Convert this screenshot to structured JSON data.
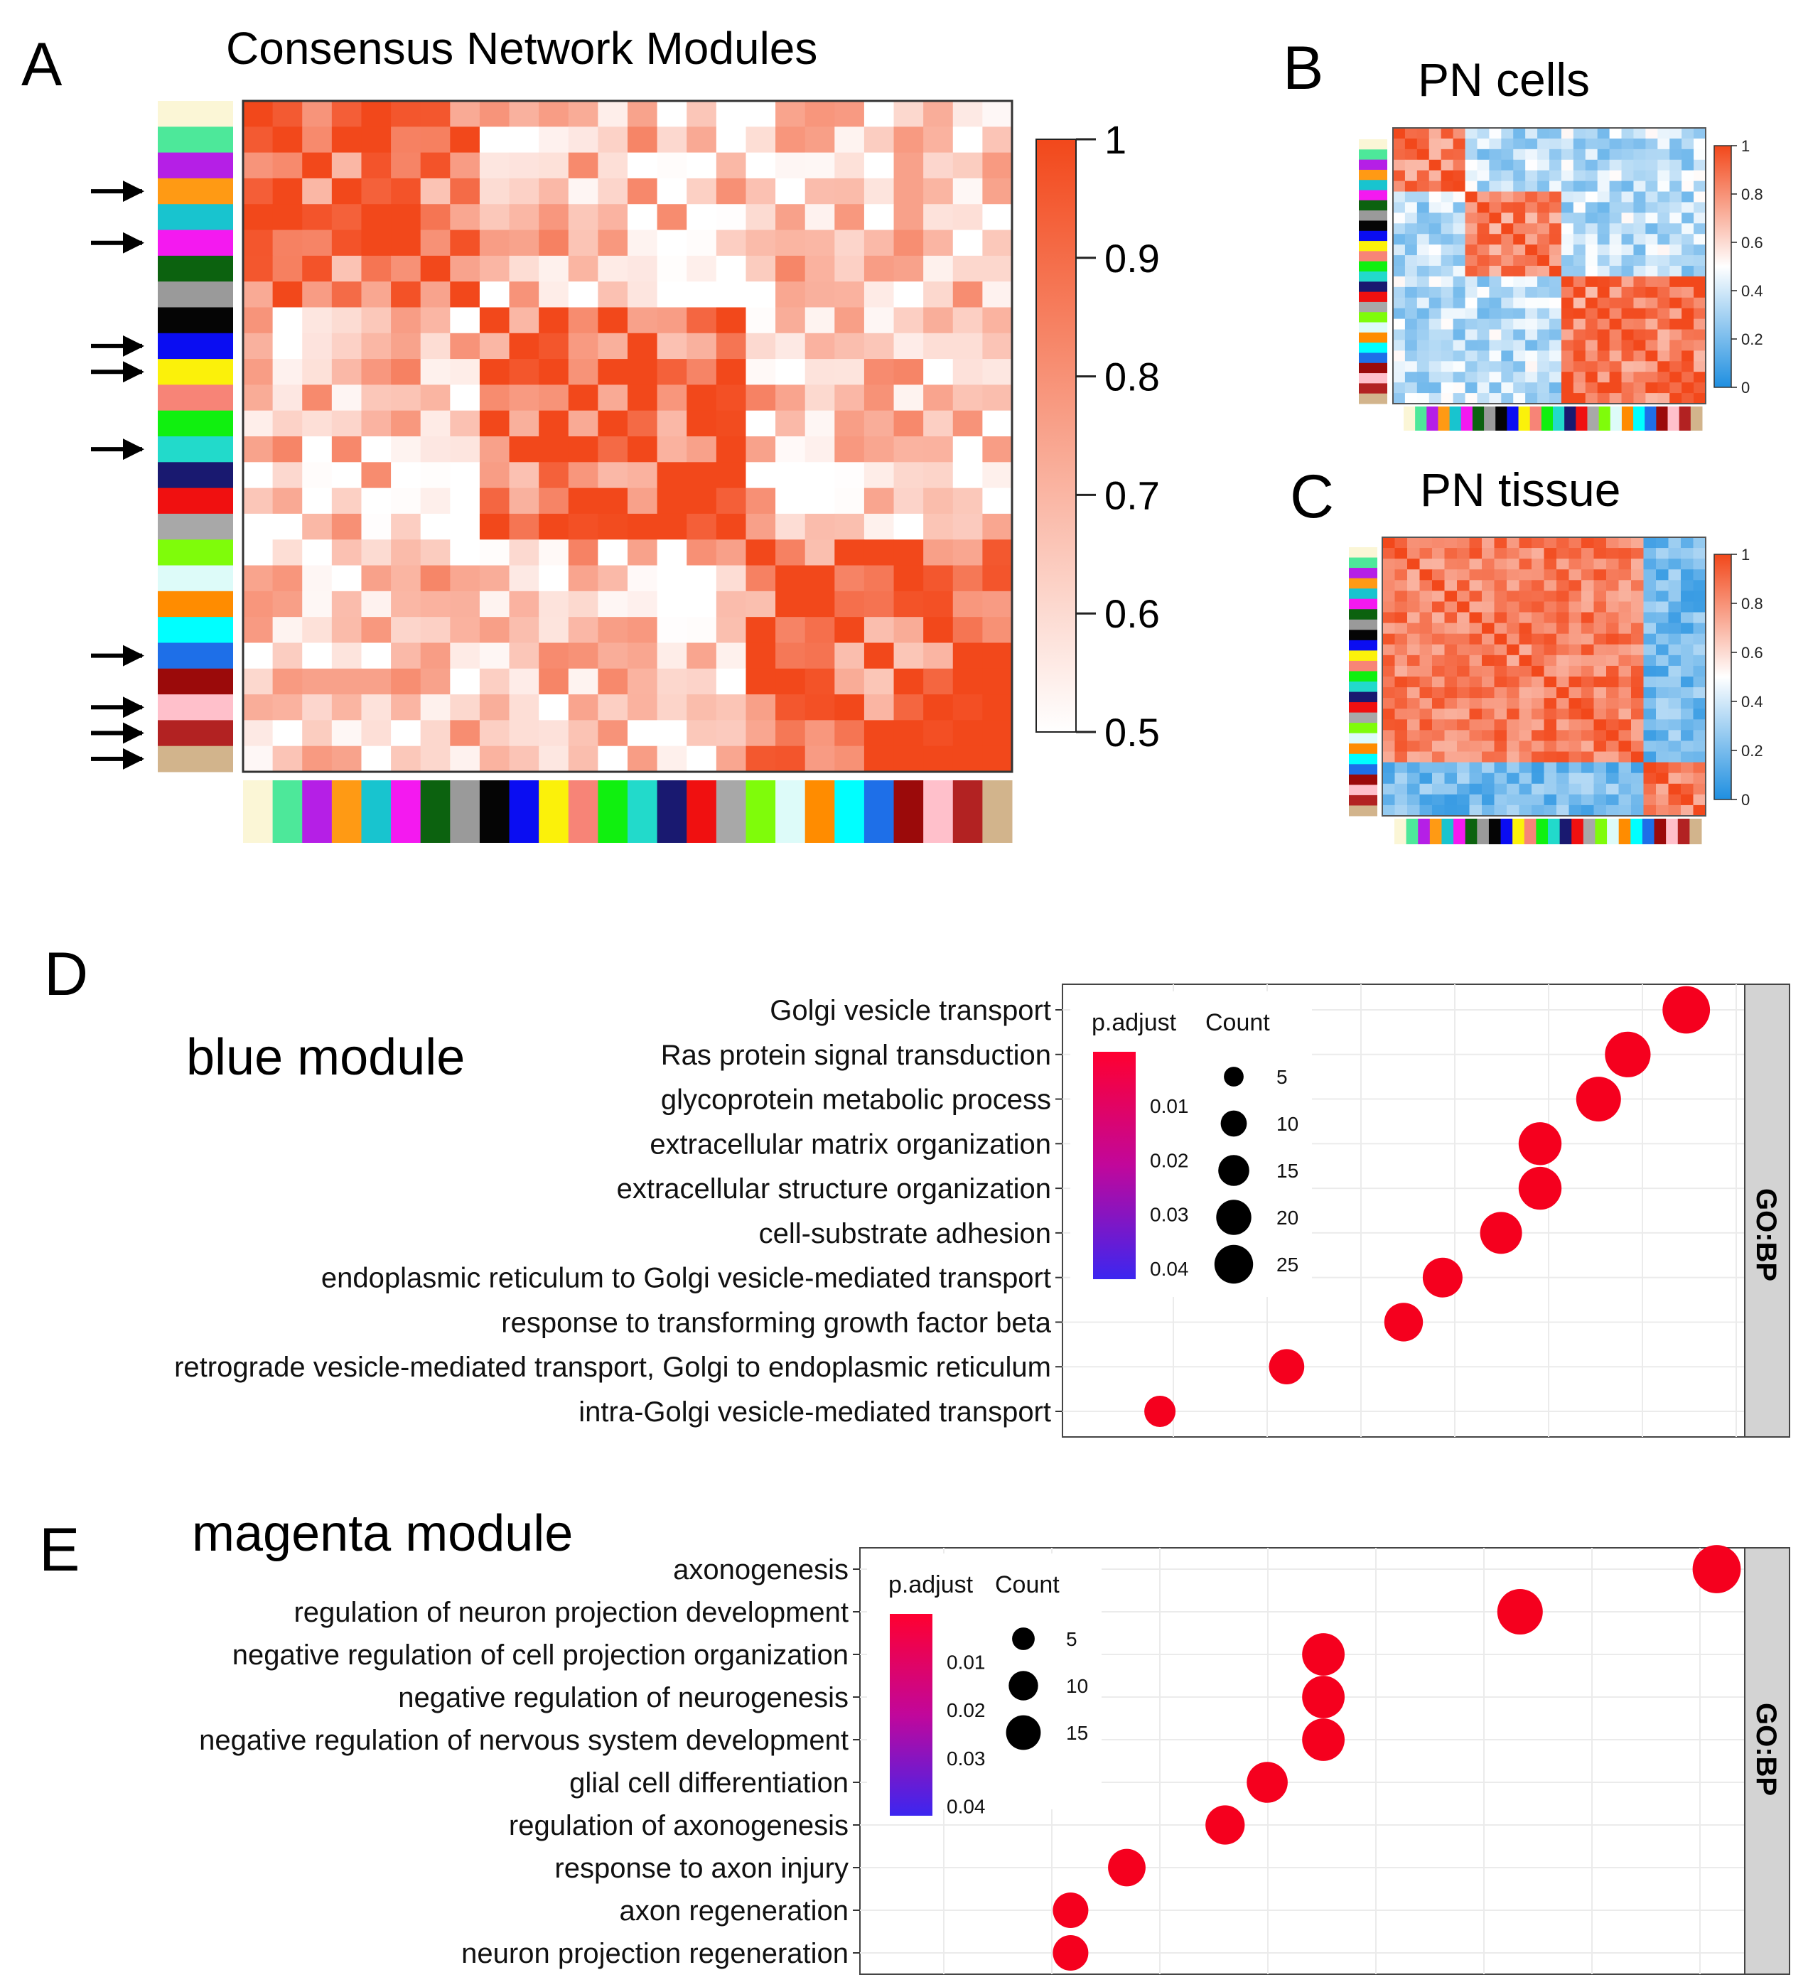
{
  "figure": {
    "panel_labels": [
      "A",
      "B",
      "C",
      "D",
      "E"
    ],
    "colors": {
      "high": "#f2481b",
      "mid": "#ffffff",
      "low": "#1f8fe0",
      "dot": "#f5001e",
      "strip_bg": "#d3d3d3",
      "grid": "#ebebeb"
    }
  },
  "chart_data": [
    {
      "type": "heatmap",
      "panel": "A",
      "title": "Consensus Network Modules",
      "module_colors": [
        "#fbf6d6",
        "#4de89a",
        "#b51fe6",
        "#ff9a14",
        "#18c4cf",
        "#f419f0",
        "#0c620f",
        "#9a9a9a",
        "#050505",
        "#0a0df2",
        "#fbf10a",
        "#f78477",
        "#10f00f",
        "#22dacb",
        "#191970",
        "#f01010",
        "#a8a8a8",
        "#7ffc0a",
        "#ddfbf9",
        "#ff8c00",
        "#00ffff",
        "#1e6fe8",
        "#9b0a0a",
        "#ffc0cb",
        "#b22222",
        "#d2b48c"
      ],
      "arrows_rows": [
        3,
        5,
        9,
        10,
        13,
        21,
        23,
        24,
        25
      ],
      "colorbar": {
        "min": 0.5,
        "max": 1,
        "ticks": [
          "1",
          "0.9",
          "0.8",
          "0.7",
          "0.6",
          "0.5"
        ]
      },
      "blocks": [
        [
          0,
          7
        ],
        [
          8,
          16
        ],
        [
          17,
          25
        ]
      ],
      "within_block_value": 0.88,
      "between_block_value": 0.62
    },
    {
      "type": "heatmap",
      "panel": "B",
      "title": "PN cells",
      "colorbar": {
        "min": 0,
        "max": 1,
        "ticks": [
          "1",
          "0.8",
          "0.6",
          "0.4",
          "0.2",
          "0"
        ]
      },
      "blocks": [
        [
          0,
          5
        ],
        [
          6,
          13
        ],
        [
          14,
          25
        ]
      ],
      "within_block_value": 0.85,
      "between_block_value": 0.35
    },
    {
      "type": "heatmap",
      "panel": "C",
      "title": "PN tissue",
      "colorbar": {
        "min": 0,
        "max": 1,
        "ticks": [
          "1",
          "0.8",
          "0.6",
          "0.4",
          "0.2",
          "0"
        ]
      },
      "blocks": [
        [
          0,
          20
        ],
        [
          21,
          25
        ]
      ],
      "within_block_value": 0.85,
      "between_block_value": 0.2
    },
    {
      "type": "scatter",
      "panel": "D",
      "title": "blue module",
      "facet": "GO:BP",
      "terms": [
        "Golgi vesicle transport",
        "Ras protein signal transduction",
        "glycoprotein metabolic process",
        "extracellular matrix organization",
        "extracellular structure organization",
        "cell-substrate adhesion",
        "endoplasmic reticulum to Golgi vesicle-mediated transport",
        "response to transforming growth factor beta",
        "retrograde vesicle-mediated transport, Golgi to endoplasmic reticulum",
        "intra-Golgi vesicle-mediated transport"
      ],
      "gene_ratio": [
        0.094,
        0.088,
        0.085,
        0.079,
        0.079,
        0.075,
        0.069,
        0.065,
        0.053,
        0.04
      ],
      "count": [
        24,
        22,
        21,
        19,
        19,
        18,
        16,
        15,
        12,
        9
      ],
      "p_adjust": [
        0.0005,
        0.001,
        0.0015,
        0.002,
        0.002,
        0.0025,
        0.003,
        0.0035,
        0.004,
        0.0045
      ],
      "xlim": [
        0.03,
        0.1
      ],
      "legend": {
        "color_title": "p.adjust",
        "color_ticks": [
          "0.01",
          "0.02",
          "0.03",
          "0.04"
        ],
        "size_title": "Count",
        "size_ticks": [
          "5",
          "10",
          "15",
          "20",
          "25"
        ]
      }
    },
    {
      "type": "scatter",
      "panel": "E",
      "title": "magenta module",
      "facet": "GO:BP",
      "terms": [
        "axonogenesis",
        "regulation of neuron projection development",
        "negative regulation of cell projection organization",
        "negative regulation of neurogenesis",
        "negative regulation of nervous system development",
        "glial cell differentiation",
        "regulation of axonogenesis",
        "response to axon injury",
        "axon regeneration",
        "neuron projection regeneration"
      ],
      "gene_ratio": [
        0.116,
        0.102,
        0.088,
        0.088,
        0.088,
        0.084,
        0.081,
        0.074,
        0.07,
        0.07
      ],
      "count": [
        15,
        13,
        11,
        11,
        11,
        10,
        9,
        8,
        7,
        7
      ],
      "p_adjust": [
        0.0005,
        0.001,
        0.0015,
        0.0015,
        0.0015,
        0.002,
        0.0025,
        0.003,
        0.0035,
        0.0035
      ],
      "xlim": [
        0.055,
        0.118
      ],
      "legend": {
        "color_title": "p.adjust",
        "color_ticks": [
          "0.01",
          "0.02",
          "0.03",
          "0.04"
        ],
        "size_title": "Count",
        "size_ticks": [
          "5",
          "10",
          "15"
        ]
      }
    }
  ]
}
